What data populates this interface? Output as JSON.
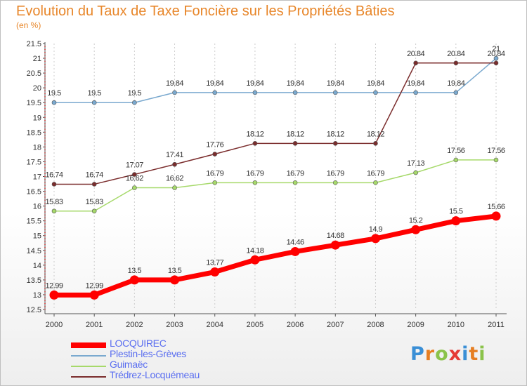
{
  "title": "Evolution du Taux de Taxe Foncière sur les Propriétés Bâties",
  "unit_label": "(en %)",
  "logo": {
    "letters": [
      {
        "ch": "P",
        "color": "#3a8fd6"
      },
      {
        "ch": "r",
        "color": "#e67e22"
      },
      {
        "ch": "o",
        "color": "#8bc34a"
      },
      {
        "ch": "x",
        "color": "#e53935"
      },
      {
        "ch": "i",
        "color": "#3a8fd6"
      },
      {
        "ch": "t",
        "color": "#e67e22"
      },
      {
        "ch": "i",
        "color": "#8bc34a"
      }
    ]
  },
  "chart_data": {
    "type": "line",
    "title": "Evolution du Taux de Taxe Foncière sur les Propriétés Bâties",
    "ylabel": "(en %)",
    "xlabel": "",
    "x": [
      "2000",
      "2001",
      "2002",
      "2003",
      "2004",
      "2005",
      "2006",
      "2007",
      "2008",
      "2009",
      "2010",
      "2011"
    ],
    "ylim": [
      12.5,
      21.5
    ],
    "ytick_step": 0.5,
    "yticks": [
      "12.5",
      "13",
      "13.5",
      "14",
      "14.5",
      "15",
      "15.5",
      "16",
      "16.5",
      "17",
      "17.5",
      "18",
      "18.5",
      "19",
      "19.5",
      "20",
      "20.5",
      "21",
      "21.5"
    ],
    "grid": "vertical dashed",
    "legend_position": "bottom-left",
    "series": [
      {
        "name": "LOCQUIREC",
        "color": "#ff0000",
        "values": [
          12.99,
          12.99,
          13.5,
          13.5,
          13.77,
          14.18,
          14.46,
          14.68,
          14.9,
          15.2,
          15.5,
          15.66
        ],
        "labels": [
          "12.99",
          "12.99",
          "13.5",
          "13.5",
          "13.77",
          "14.18",
          "14.46",
          "14.68",
          "14.9",
          "15.2",
          "15.5",
          "15.66"
        ]
      },
      {
        "name": "Plestin-les-Grèves",
        "color": "#7aa9cf",
        "values": [
          19.5,
          19.5,
          19.5,
          19.84,
          19.84,
          19.84,
          19.84,
          19.84,
          19.84,
          19.84,
          19.84,
          21
        ],
        "labels": [
          "19.5",
          "19.5",
          "19.5",
          "19.84",
          "19.84",
          "19.84",
          "19.84",
          "19.84",
          "19.84",
          "19.84",
          "19.84",
          "21"
        ]
      },
      {
        "name": "Guimaëc",
        "color": "#a6d96a",
        "values": [
          15.83,
          15.83,
          16.62,
          16.62,
          16.79,
          16.79,
          16.79,
          16.79,
          16.79,
          17.13,
          17.56,
          17.56
        ],
        "labels": [
          "15.83",
          "15.83",
          "16.62",
          "16.62",
          "16.79",
          "16.79",
          "16.79",
          "16.79",
          "16.79",
          "17.13",
          "17.56",
          "17.56"
        ]
      },
      {
        "name": "Trédrez-Locquémeau",
        "color": "#7b2d2d",
        "values": [
          16.74,
          16.74,
          17.07,
          17.41,
          17.76,
          18.12,
          18.12,
          18.12,
          18.12,
          20.84,
          20.84,
          20.84
        ],
        "labels": [
          "16.74",
          "16.74",
          "17.07",
          "17.41",
          "17.76",
          "18.12",
          "18.12",
          "18.12",
          "18.12",
          "20.84",
          "20.84",
          "20.84"
        ]
      }
    ]
  }
}
